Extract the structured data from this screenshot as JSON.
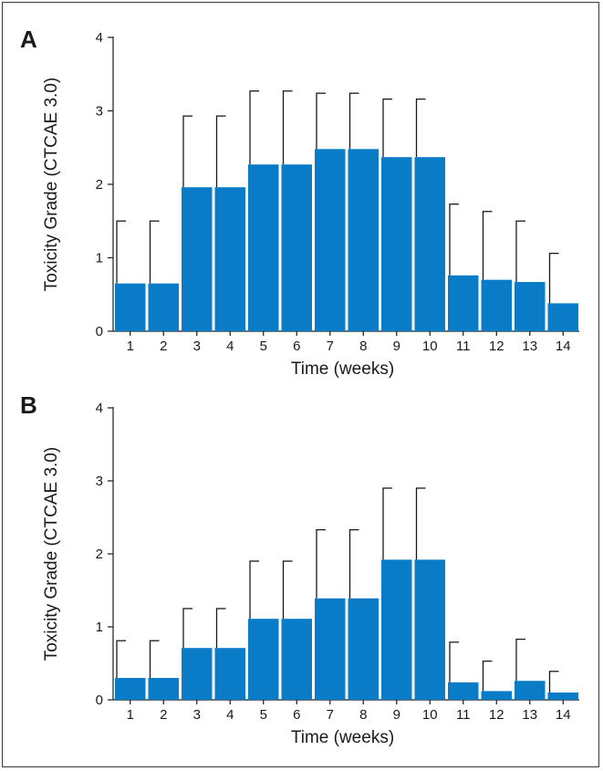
{
  "colors": {
    "bar": "#0a7bc6",
    "error_bar": "#1a1a1a",
    "axis": "#1a1a1a",
    "frame": "#3a3a3a"
  },
  "chart_data": [
    {
      "type": "bar",
      "panel_label": "A",
      "title": "",
      "xlabel": "Time (weeks)",
      "ylabel": "Toxicity Grade (CTCAE 3.0)",
      "ylim": [
        0,
        4
      ],
      "yticks": [
        "0",
        "1",
        "2",
        "3",
        "4"
      ],
      "categories": [
        "1",
        "2",
        "3",
        "4",
        "5",
        "6",
        "7",
        "8",
        "9",
        "10",
        "11",
        "12",
        "13",
        "14"
      ],
      "values": [
        0.65,
        0.65,
        1.96,
        1.96,
        2.27,
        2.27,
        2.48,
        2.48,
        2.37,
        2.37,
        0.76,
        0.7,
        0.67,
        0.38
      ],
      "error_upper": [
        1.5,
        1.5,
        2.93,
        2.93,
        3.27,
        3.27,
        3.24,
        3.24,
        3.16,
        3.16,
        1.73,
        1.63,
        1.5,
        1.06
      ],
      "grid": false
    },
    {
      "type": "bar",
      "panel_label": "B",
      "title": "",
      "xlabel": "Time (weeks)",
      "ylabel": "Toxicity Grade (CTCAE 3.0)",
      "ylim": [
        0,
        4
      ],
      "yticks": [
        "0",
        "1",
        "2",
        "3",
        "4"
      ],
      "categories": [
        "1",
        "2",
        "3",
        "4",
        "5",
        "6",
        "7",
        "8",
        "9",
        "10",
        "11",
        "12",
        "13",
        "14"
      ],
      "values": [
        0.3,
        0.3,
        0.71,
        0.71,
        1.11,
        1.11,
        1.39,
        1.39,
        1.92,
        1.92,
        0.24,
        0.12,
        0.26,
        0.1
      ],
      "error_upper": [
        0.81,
        0.81,
        1.25,
        1.25,
        1.9,
        1.9,
        2.33,
        2.33,
        2.9,
        2.9,
        0.79,
        0.53,
        0.83,
        0.39
      ],
      "grid": false
    }
  ]
}
